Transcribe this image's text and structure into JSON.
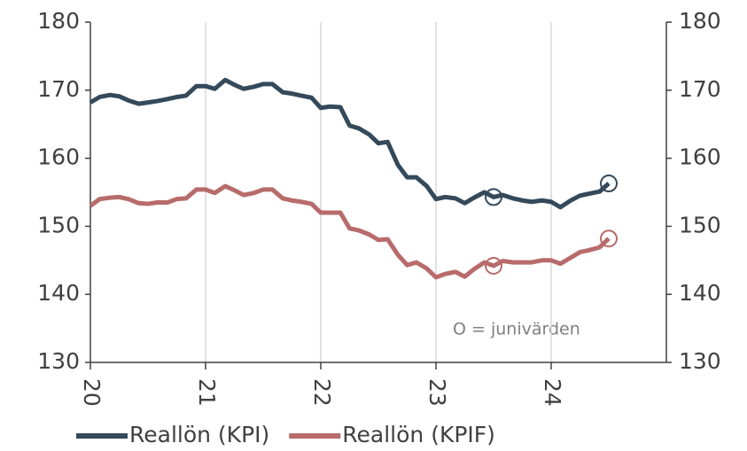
{
  "chart_data": {
    "type": "line",
    "annotation": "O = junivärden",
    "x": [
      20,
      20.08,
      20.17,
      20.25,
      20.33,
      20.42,
      20.5,
      20.58,
      20.67,
      20.75,
      20.83,
      20.92,
      21,
      21.08,
      21.17,
      21.25,
      21.33,
      21.42,
      21.5,
      21.58,
      21.67,
      21.75,
      21.83,
      21.92,
      22,
      22.08,
      22.17,
      22.25,
      22.33,
      22.42,
      22.5,
      22.58,
      22.67,
      22.75,
      22.83,
      22.92,
      23,
      23.08,
      23.17,
      23.25,
      23.33,
      23.42,
      23.5,
      23.58,
      23.67,
      23.75,
      23.83,
      23.92,
      24,
      24.08,
      24.17,
      24.25,
      24.33,
      24.42,
      24.5
    ],
    "series": [
      {
        "name": "Reallön (KPI)",
        "color": "#34495a",
        "highlight": [
          42,
          54
        ],
        "values": [
          168.2,
          169.0,
          169.3,
          169.1,
          168.5,
          168.0,
          168.2,
          168.4,
          168.7,
          169.0,
          169.2,
          170.6,
          170.6,
          170.2,
          171.5,
          170.8,
          170.2,
          170.5,
          170.9,
          170.9,
          169.7,
          169.5,
          169.2,
          168.9,
          167.4,
          167.6,
          167.5,
          164.8,
          164.4,
          163.5,
          162.2,
          162.4,
          159.0,
          157.2,
          157.2,
          155.9,
          154.0,
          154.3,
          154.1,
          153.4,
          154.2,
          155.0,
          154.3,
          154.6,
          154.1,
          153.8,
          153.6,
          153.8,
          153.6,
          152.8,
          153.8,
          154.5,
          154.8,
          155.1,
          156.3
        ]
      },
      {
        "name": "Reallön (KPIF)",
        "color": "#b86b6b",
        "highlight": [
          42,
          54
        ],
        "values": [
          153.0,
          154.0,
          154.2,
          154.3,
          154.0,
          153.4,
          153.3,
          153.5,
          153.5,
          154.0,
          154.1,
          155.4,
          155.4,
          154.9,
          155.9,
          155.3,
          154.6,
          154.9,
          155.4,
          155.4,
          154.1,
          153.8,
          153.6,
          153.3,
          152.0,
          152.0,
          152.0,
          149.7,
          149.4,
          148.8,
          148.0,
          148.1,
          145.8,
          144.3,
          144.7,
          143.8,
          142.5,
          143.0,
          143.3,
          142.6,
          143.7,
          144.7,
          144.2,
          144.9,
          144.7,
          144.7,
          144.7,
          145.0,
          145.0,
          144.5,
          145.4,
          146.2,
          146.5,
          146.9,
          148.2
        ]
      }
    ],
    "xlim": [
      20,
      25
    ],
    "xticks": [
      20,
      21,
      22,
      23,
      24
    ],
    "ylim": [
      130,
      180
    ],
    "yticks": [
      130,
      140,
      150,
      160,
      170,
      180
    ],
    "y2lim": [
      130,
      180
    ],
    "y2ticks": [
      130,
      140,
      150,
      160,
      170,
      180
    ],
    "grid": "x",
    "legend": "bottom"
  }
}
